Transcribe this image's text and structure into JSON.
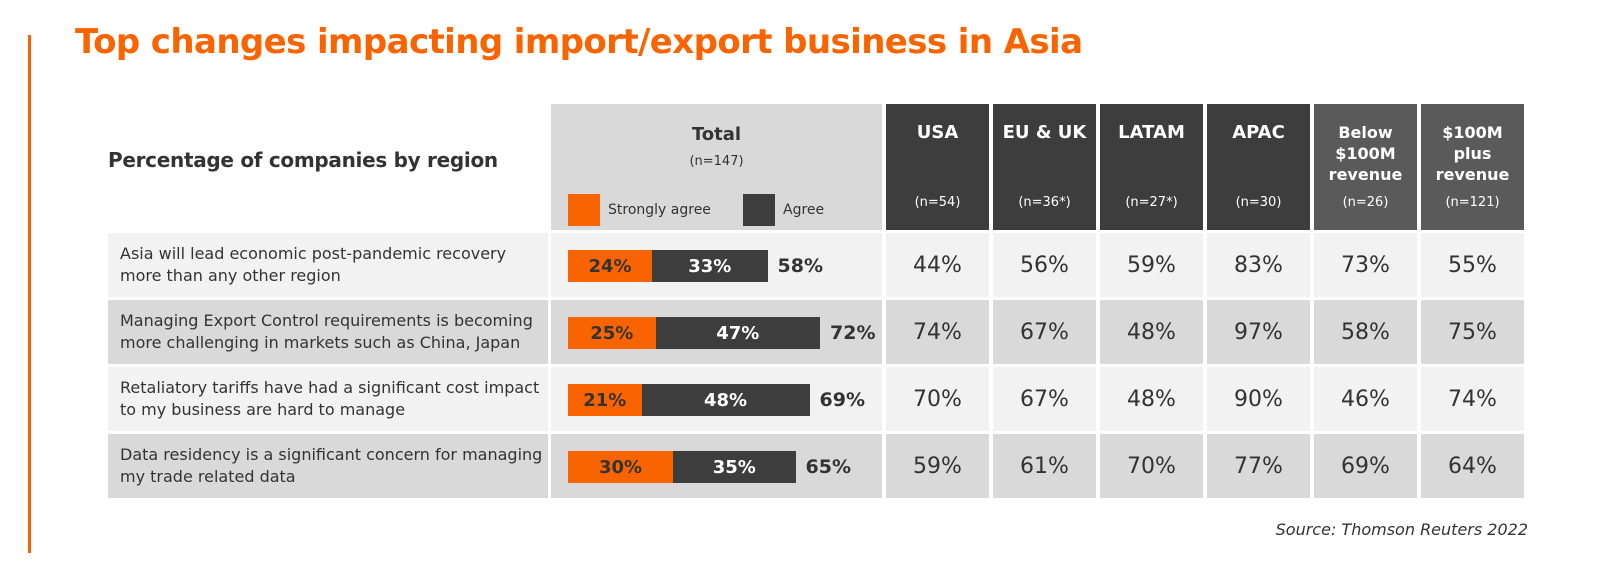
{
  "title": "Top changes impacting import/export business in Asia",
  "subtitle": "Percentage of companies by region",
  "source": "Source: Thomson Reuters 2022",
  "colors": {
    "accent": "#fa6400",
    "strongly_agree": "#fa6400",
    "agree": "#3d3d3d",
    "region_header": "#3d3d3d",
    "revenue_header": "#5a5a5a"
  },
  "chart_data": {
    "type": "table",
    "total_column": {
      "title": "Total",
      "n": "(n=147)",
      "legend": [
        "Strongly agree",
        "Agree"
      ]
    },
    "columns": [
      {
        "title": "USA",
        "n": "(n=54)",
        "kind": "region"
      },
      {
        "title": "EU & UK",
        "n": "(n=36*)",
        "kind": "region"
      },
      {
        "title": "LATAM",
        "n": "(n=27*)",
        "kind": "region"
      },
      {
        "title": "APAC",
        "n": "(n=30)",
        "kind": "region"
      },
      {
        "title": "Below $100M revenue",
        "n": "(n=26)",
        "kind": "revenue"
      },
      {
        "title": "$100M plus revenue",
        "n": "(n=121)",
        "kind": "revenue"
      }
    ],
    "rows": [
      {
        "label": "Asia will lead economic post-pandemic recovery more than any other region",
        "strongly_agree": 24,
        "agree": 33,
        "total": 58,
        "values": [
          "44%",
          "56%",
          "59%",
          "83%",
          "73%",
          "55%"
        ]
      },
      {
        "label": "Managing Export Control requirements is becoming more challenging in markets such as China, Japan",
        "strongly_agree": 25,
        "agree": 47,
        "total": 72,
        "values": [
          "74%",
          "67%",
          "48%",
          "97%",
          "58%",
          "75%"
        ]
      },
      {
        "label": "Retaliatory tariffs have had a significant cost impact to my business are hard to manage",
        "strongly_agree": 21,
        "agree": 48,
        "total": 69,
        "values": [
          "70%",
          "67%",
          "48%",
          "90%",
          "46%",
          "74%"
        ]
      },
      {
        "label": "Data residency is a significant concern for managing my trade related data",
        "strongly_agree": 30,
        "agree": 35,
        "total": 65,
        "values": [
          "59%",
          "61%",
          "70%",
          "77%",
          "69%",
          "64%"
        ]
      }
    ]
  }
}
